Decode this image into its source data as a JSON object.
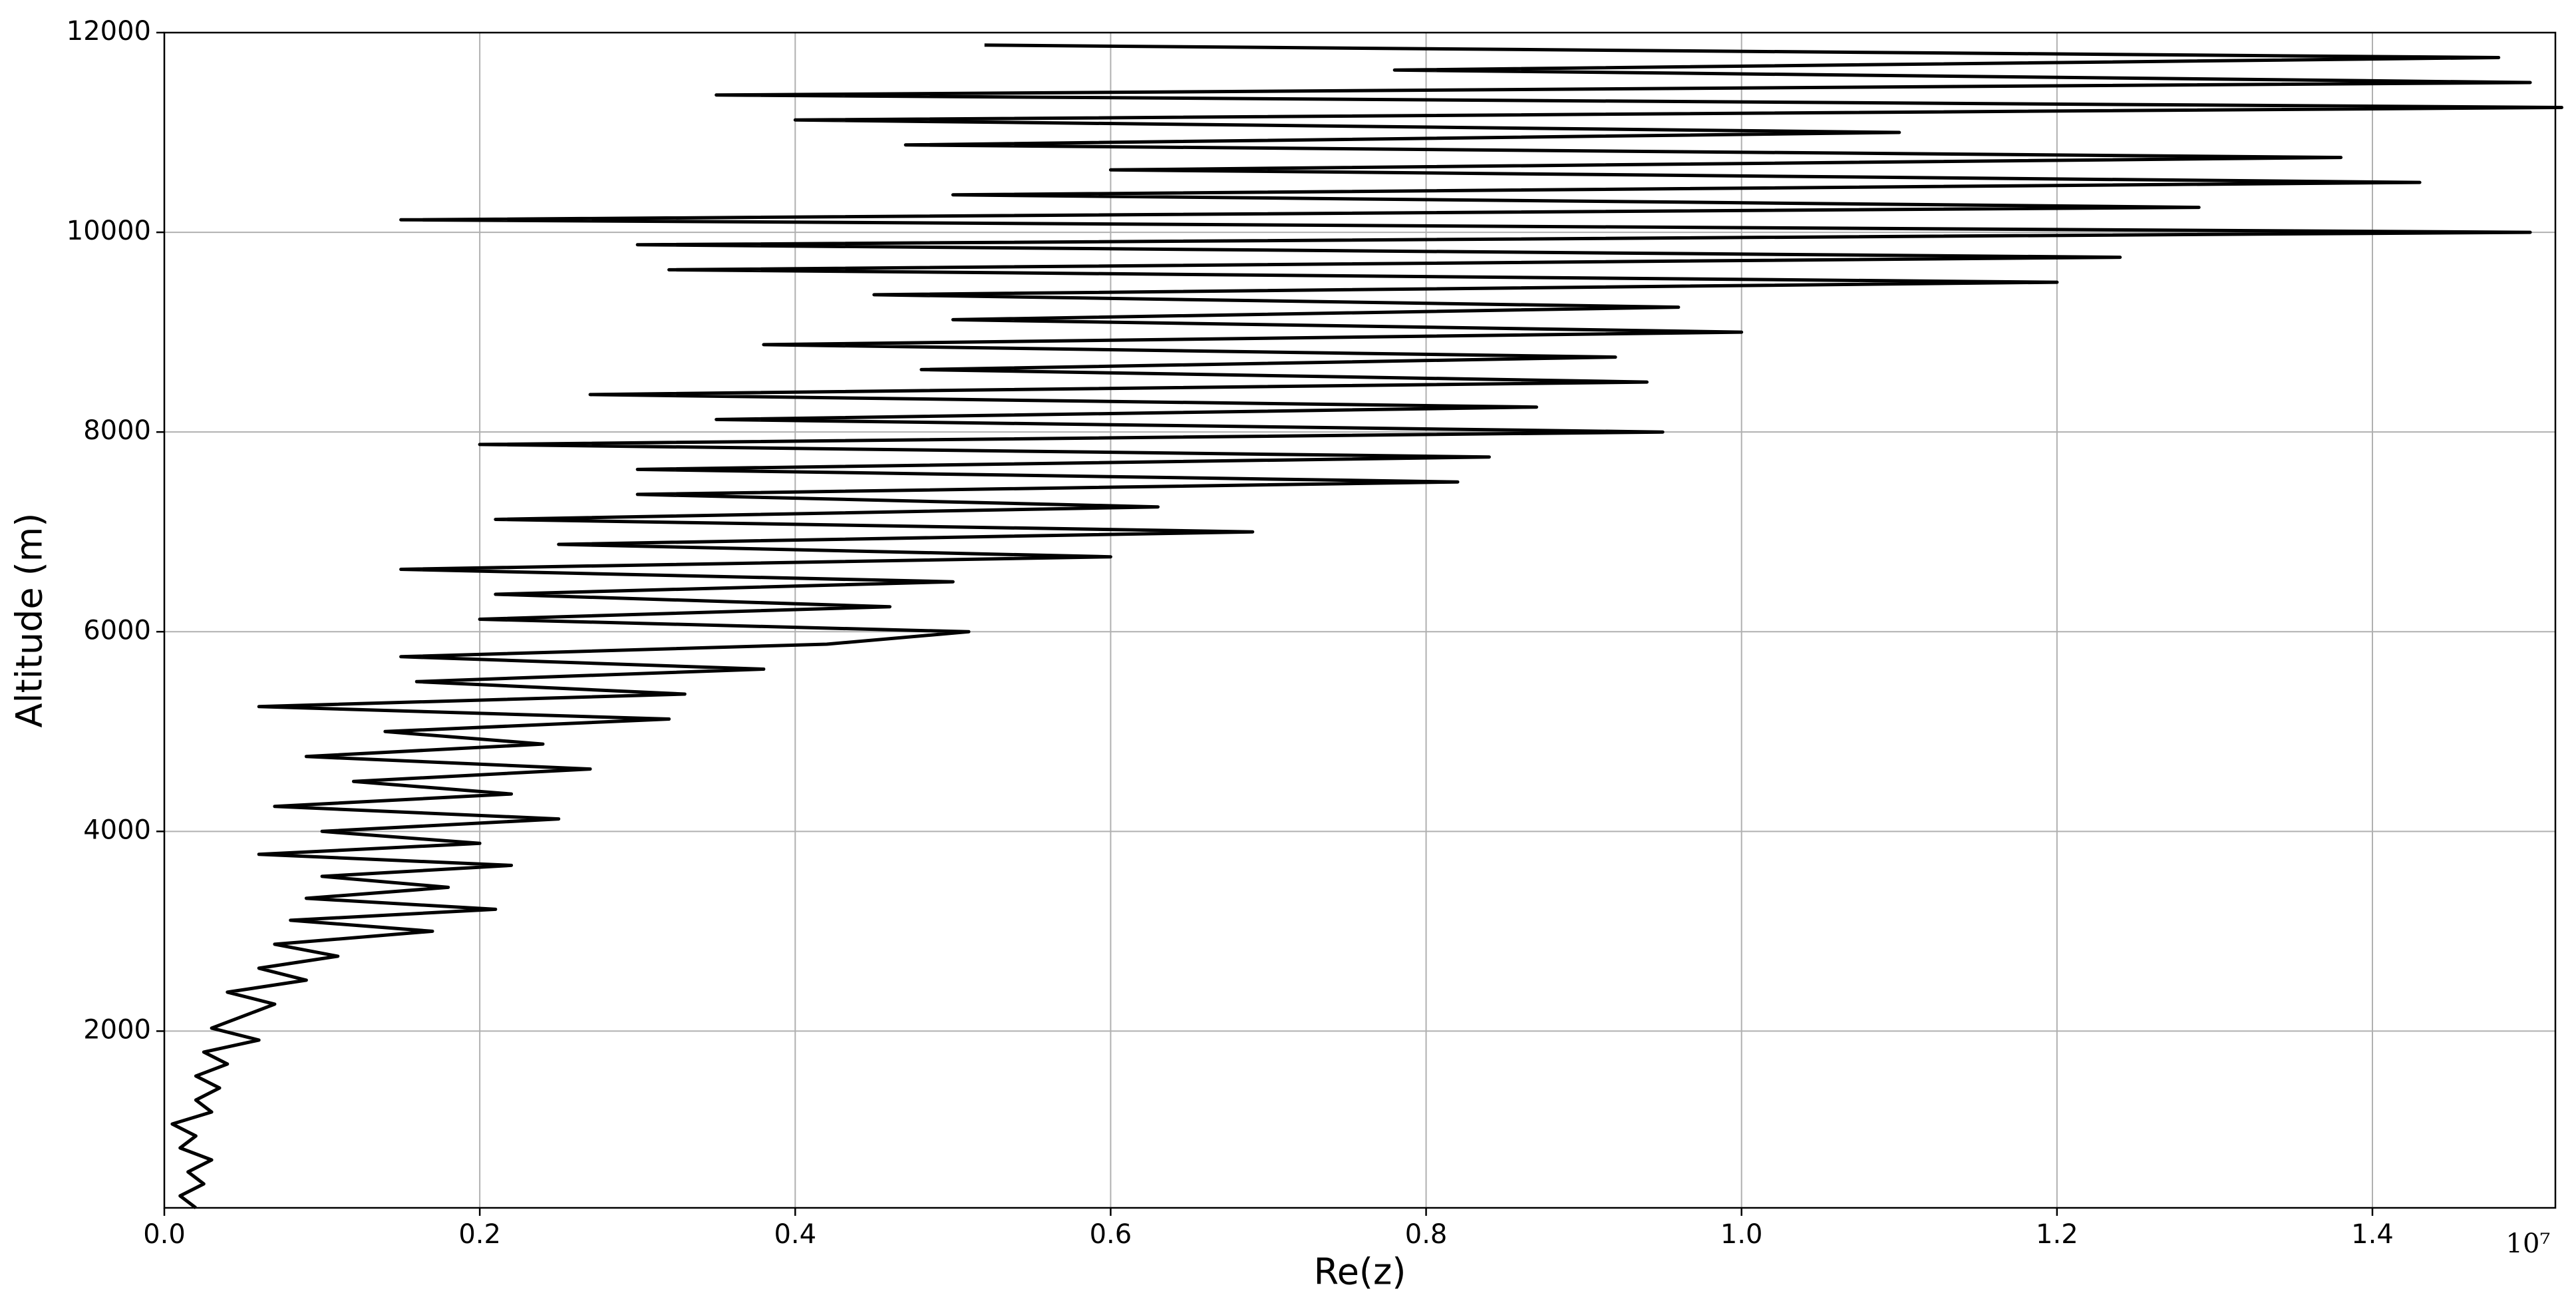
{
  "chart_data": {
    "type": "line",
    "xlabel": "Re(z)",
    "ylabel": "Altitude (m)",
    "x_offset_label": "10⁷",
    "x": [
      0.02,
      0.01,
      0.025,
      0.015,
      0.03,
      0.01,
      0.02,
      0.005,
      0.03,
      0.02,
      0.035,
      0.02,
      0.04,
      0.025,
      0.06,
      0.03,
      0.05,
      0.07,
      0.04,
      0.09,
      0.06,
      0.11,
      0.07,
      0.17,
      0.08,
      0.21,
      0.09,
      0.18,
      0.1,
      0.22,
      0.06,
      0.2,
      0.1,
      0.25,
      0.07,
      0.22,
      0.12,
      0.27,
      0.09,
      0.24,
      0.14,
      0.32,
      0.06,
      0.33,
      0.16,
      0.38,
      0.15,
      0.42,
      0.51,
      0.2,
      0.46,
      0.21,
      0.5,
      0.15,
      0.6,
      0.25,
      0.69,
      0.21,
      0.63,
      0.3,
      0.82,
      0.3,
      0.84,
      0.2,
      0.95,
      0.35,
      0.87,
      0.27,
      0.94,
      0.48,
      0.92,
      0.38,
      1.0,
      0.5,
      0.96,
      0.45,
      1.2,
      0.32,
      1.24,
      0.3,
      1.5,
      0.15,
      1.29,
      0.5,
      1.43,
      0.6,
      1.38,
      0.47,
      1.1,
      0.4,
      1.52,
      0.35,
      1.5,
      0.78,
      1.48,
      0.52
    ],
    "series": [
      {
        "color": "#000000",
        "values": [
          230,
          350,
          470,
          590,
          710,
          830,
          950,
          1070,
          1190,
          1310,
          1430,
          1550,
          1670,
          1790,
          1910,
          2030,
          2150,
          2270,
          2390,
          2510,
          2630,
          2750,
          2870,
          3000,
          3110,
          3220,
          3330,
          3440,
          3550,
          3660,
          3770,
          3880,
          4000,
          4125,
          4250,
          4375,
          4500,
          4625,
          4750,
          4875,
          5000,
          5125,
          5250,
          5375,
          5500,
          5625,
          5750,
          5875,
          6000,
          6125,
          6250,
          6375,
          6500,
          6625,
          6750,
          6875,
          7000,
          7125,
          7250,
          7375,
          7500,
          7625,
          7750,
          7875,
          8000,
          8125,
          8250,
          8375,
          8500,
          8625,
          8750,
          8875,
          9000,
          9125,
          9250,
          9375,
          9500,
          9625,
          9750,
          9875,
          10000,
          10125,
          10250,
          10375,
          10500,
          10625,
          10750,
          10875,
          11000,
          11125,
          11250,
          11375,
          11500,
          11625,
          11750,
          11875
        ]
      }
    ],
    "xlim": [
      0,
      1.516
    ],
    "ylim": [
      230,
      12000
    ],
    "xticks": [
      {
        "value": 0,
        "label": "0.0"
      },
      0.2,
      0.4,
      0.6,
      0.8,
      {
        "value": 1,
        "label": "1.0"
      },
      1.2,
      1.4
    ],
    "yticks": [
      2000,
      4000,
      6000,
      8000,
      10000,
      12000
    ],
    "grid": true
  }
}
